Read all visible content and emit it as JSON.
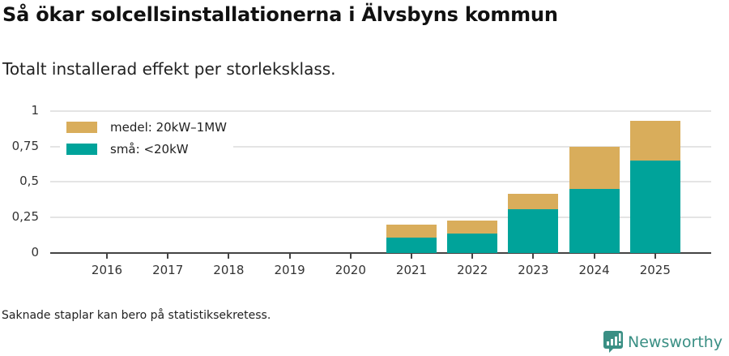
{
  "header": {
    "title": "Så ökar solcellsinstallationerna i Älvsbyns kommun",
    "subtitle": "Totalt installerad effekt per storleksklass."
  },
  "footer": {
    "note": "Saknade staplar kan bero på statistiksekretess.",
    "brand": "Newsworthy",
    "brand_icon": "newsworthy-chart-bubble-icon",
    "brand_color": "#3a8f84"
  },
  "legend": [
    {
      "label": "medel: 20kW–1MW",
      "color": "#d9ad5b"
    },
    {
      "label": "små: <20kW",
      "color": "#00a39a"
    }
  ],
  "axis": {
    "y_ticks": [
      "1",
      "0,75",
      "0,5",
      "0,25",
      "0"
    ],
    "x_ticks": [
      "2016",
      "2017",
      "2018",
      "2019",
      "2020",
      "2021",
      "2022",
      "2023",
      "2024",
      "2025"
    ]
  },
  "chart_data": {
    "type": "bar",
    "stacked": true,
    "title": "Så ökar solcellsinstallationerna i Älvsbyns kommun",
    "subtitle": "Totalt installerad effekt per storleksklass.",
    "xlabel": "",
    "ylabel": "",
    "ylim": [
      0,
      1
    ],
    "grid": true,
    "legend_position": "top-left",
    "categories": [
      "2016",
      "2017",
      "2018",
      "2019",
      "2020",
      "2021",
      "2022",
      "2023",
      "2024",
      "2025"
    ],
    "series": [
      {
        "name": "små: <20kW",
        "color": "#00a39a",
        "values": [
          0,
          0,
          0,
          0,
          0,
          0.11,
          0.137,
          0.31,
          0.45,
          0.65
        ]
      },
      {
        "name": "medel: 20kW–1MW",
        "color": "#d9ad5b",
        "values": [
          0,
          0,
          0,
          0,
          0,
          0.09,
          0.093,
          0.107,
          0.3,
          0.28
        ]
      }
    ],
    "annotations": [
      "Saknade staplar kan bero på statistiksekretess."
    ]
  }
}
